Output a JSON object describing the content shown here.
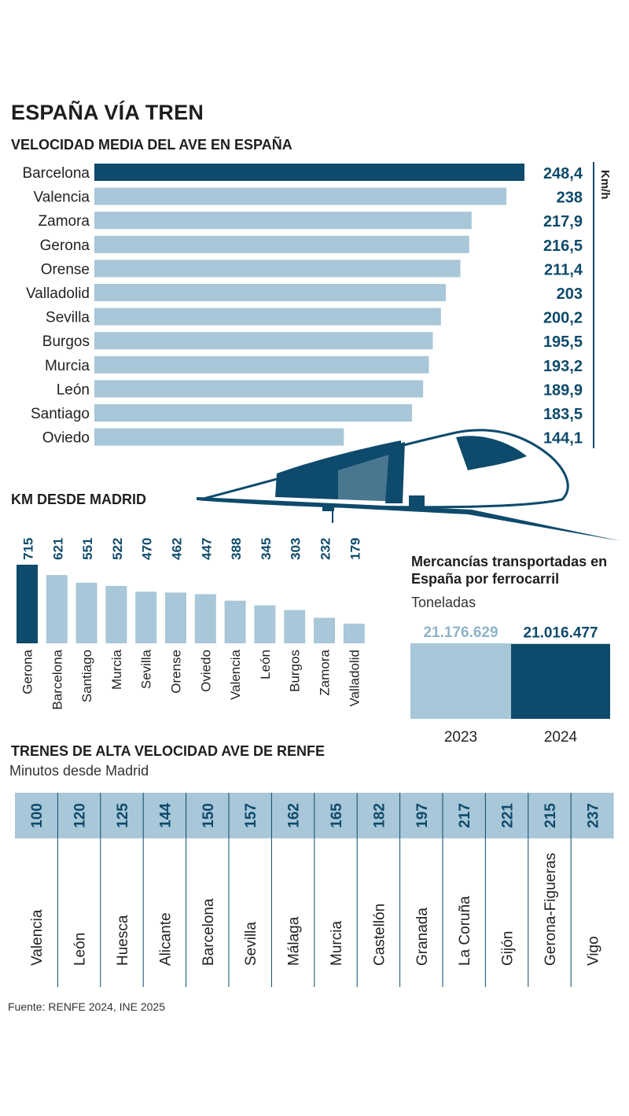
{
  "page": {
    "title": "ESPAÑA VÍA TREN",
    "source": "Fuente: RENFE 2024, INE 2025"
  },
  "colors": {
    "dark": "#0e4a6b",
    "light": "#a8c7d8",
    "label_dark": "#0e4a6b"
  },
  "chart_data": [
    {
      "type": "bar",
      "orientation": "horizontal",
      "title": "VELOCIDAD MEDIA DEL AVE EN ESPAÑA",
      "unit": "Km/h",
      "categories": [
        "Barcelona",
        "Valencia",
        "Zamora",
        "Gerona",
        "Orense",
        "Valladolid",
        "Sevilla",
        "Burgos",
        "Murcia",
        "León",
        "Santiago",
        "Oviedo"
      ],
      "values": [
        248.4,
        238,
        217.9,
        216.5,
        211.4,
        203,
        200.2,
        195.5,
        193.2,
        189.9,
        183.5,
        144.1
      ],
      "value_labels": [
        "248,4",
        "238",
        "217,9",
        "216,5",
        "211,4",
        "203",
        "200,2",
        "195,5",
        "193,2",
        "189,9",
        "183,5",
        "144,1"
      ],
      "highlight": "Barcelona"
    },
    {
      "type": "bar",
      "orientation": "vertical",
      "title": "KM DESDE MADRID",
      "categories": [
        "Gerona",
        "Barcelona",
        "Santiago",
        "Murcia",
        "Sevilla",
        "Orense",
        "Oviedo",
        "Valencia",
        "León",
        "Burgos",
        "Zamora",
        "Valladolid"
      ],
      "values": [
        715,
        621,
        551,
        522,
        470,
        462,
        447,
        388,
        345,
        303,
        232,
        179
      ],
      "highlight": "Gerona"
    },
    {
      "type": "bar",
      "orientation": "vertical",
      "title": "Mercancías transportadas en España por ferrocarril",
      "subtitle": "Toneladas",
      "categories": [
        "2023",
        "2024"
      ],
      "values": [
        21176629,
        21016477
      ],
      "value_labels": [
        "21.176.629",
        "21.016.477"
      ]
    },
    {
      "type": "table",
      "title": "TRENES DE ALTA VELOCIDAD AVE DE RENFE",
      "subtitle": "Minutos desde Madrid",
      "categories": [
        "Valencia",
        "León",
        "Huesca",
        "Alicante",
        "Barcelona",
        "Sevilla",
        "Málaga",
        "Murcia",
        "Castellón",
        "Granada",
        "La Coruña",
        "Gijón",
        "Gerona-Figueras",
        "Vigo"
      ],
      "values": [
        100,
        120,
        125,
        144,
        150,
        157,
        162,
        165,
        182,
        197,
        217,
        221,
        215,
        237
      ]
    }
  ]
}
